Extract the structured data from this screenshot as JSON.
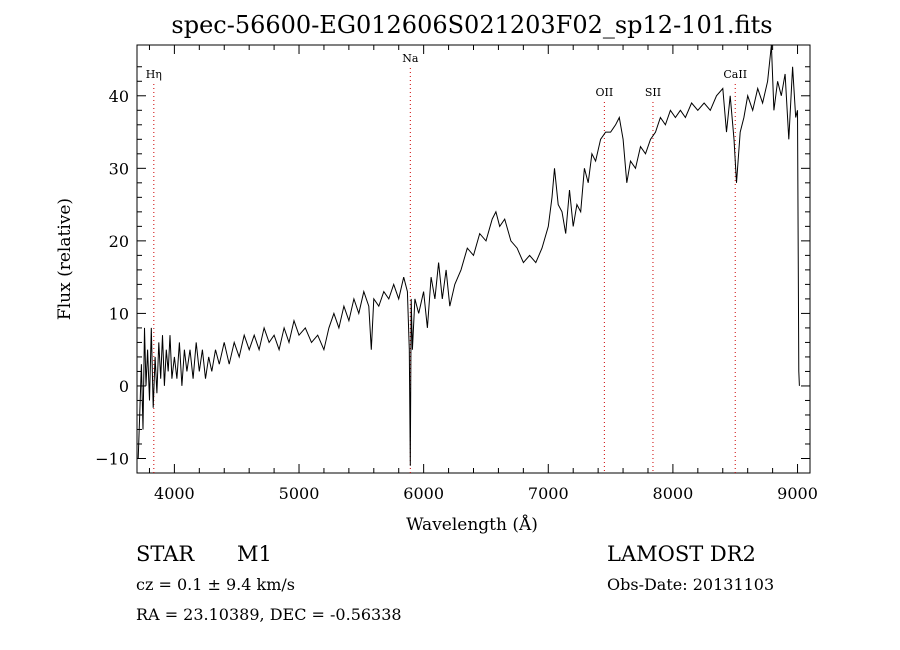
{
  "chart_data": {
    "type": "line",
    "title": "spec-56600-EG012606S021203F02_sp12-101.fits",
    "xlabel": "Wavelength (Å)",
    "ylabel": "Flux (relative)",
    "xlim": [
      3700,
      9100
    ],
    "ylim": [
      -12,
      47
    ],
    "xticks": [
      4000,
      5000,
      6000,
      7000,
      8000,
      9000
    ],
    "yticks": [
      -10,
      0,
      10,
      20,
      30,
      40
    ],
    "grid": false,
    "line_color": "#000000",
    "marker_color": "#cc0000",
    "lines": [
      {
        "label": "Hη",
        "x": 3835
      },
      {
        "label": "Na",
        "x": 5893
      },
      {
        "label": "OII",
        "x": 7450
      },
      {
        "label": "SII",
        "x": 7840
      },
      {
        "label": "CaII",
        "x": 8500
      }
    ],
    "spectrum": [
      [
        3710,
        -10
      ],
      [
        3722,
        -4
      ],
      [
        3735,
        3
      ],
      [
        3748,
        -6
      ],
      [
        3760,
        8
      ],
      [
        3772,
        0
      ],
      [
        3785,
        5
      ],
      [
        3800,
        -2
      ],
      [
        3815,
        8
      ],
      [
        3830,
        -3
      ],
      [
        3845,
        4
      ],
      [
        3860,
        -1
      ],
      [
        3875,
        6
      ],
      [
        3890,
        1
      ],
      [
        3905,
        7
      ],
      [
        3920,
        0
      ],
      [
        3935,
        5
      ],
      [
        3950,
        2
      ],
      [
        3965,
        7
      ],
      [
        3980,
        1
      ],
      [
        4000,
        4
      ],
      [
        4020,
        1
      ],
      [
        4040,
        6
      ],
      [
        4060,
        0
      ],
      [
        4080,
        5
      ],
      [
        4100,
        2
      ],
      [
        4125,
        5
      ],
      [
        4150,
        1
      ],
      [
        4175,
        6
      ],
      [
        4200,
        2
      ],
      [
        4225,
        5
      ],
      [
        4250,
        1
      ],
      [
        4275,
        4
      ],
      [
        4300,
        2
      ],
      [
        4330,
        5
      ],
      [
        4360,
        3
      ],
      [
        4400,
        6
      ],
      [
        4440,
        3
      ],
      [
        4480,
        6
      ],
      [
        4520,
        4
      ],
      [
        4560,
        7
      ],
      [
        4600,
        5
      ],
      [
        4640,
        7
      ],
      [
        4680,
        5
      ],
      [
        4720,
        8
      ],
      [
        4760,
        6
      ],
      [
        4800,
        7
      ],
      [
        4840,
        5
      ],
      [
        4880,
        8
      ],
      [
        4920,
        6
      ],
      [
        4960,
        9
      ],
      [
        5000,
        7
      ],
      [
        5050,
        8
      ],
      [
        5100,
        6
      ],
      [
        5150,
        7
      ],
      [
        5200,
        5
      ],
      [
        5240,
        8
      ],
      [
        5280,
        10
      ],
      [
        5320,
        8
      ],
      [
        5360,
        11
      ],
      [
        5400,
        9
      ],
      [
        5440,
        12
      ],
      [
        5480,
        10
      ],
      [
        5520,
        13
      ],
      [
        5560,
        11
      ],
      [
        5580,
        5
      ],
      [
        5600,
        12
      ],
      [
        5640,
        11
      ],
      [
        5680,
        13
      ],
      [
        5720,
        12
      ],
      [
        5760,
        14
      ],
      [
        5800,
        12
      ],
      [
        5840,
        15
      ],
      [
        5870,
        13
      ],
      [
        5885,
        5
      ],
      [
        5893,
        -11
      ],
      [
        5900,
        12
      ],
      [
        5910,
        5
      ],
      [
        5930,
        12
      ],
      [
        5960,
        10
      ],
      [
        6000,
        13
      ],
      [
        6030,
        8
      ],
      [
        6060,
        15
      ],
      [
        6090,
        12
      ],
      [
        6120,
        17
      ],
      [
        6150,
        12
      ],
      [
        6180,
        16
      ],
      [
        6210,
        11
      ],
      [
        6250,
        14
      ],
      [
        6300,
        16
      ],
      [
        6350,
        19
      ],
      [
        6400,
        18
      ],
      [
        6450,
        21
      ],
      [
        6500,
        20
      ],
      [
        6550,
        23
      ],
      [
        6580,
        24
      ],
      [
        6610,
        22
      ],
      [
        6650,
        23
      ],
      [
        6700,
        20
      ],
      [
        6750,
        19
      ],
      [
        6800,
        17
      ],
      [
        6850,
        18
      ],
      [
        6900,
        17
      ],
      [
        6950,
        19
      ],
      [
        7000,
        22
      ],
      [
        7030,
        26
      ],
      [
        7050,
        30
      ],
      [
        7080,
        25
      ],
      [
        7110,
        24
      ],
      [
        7140,
        21
      ],
      [
        7170,
        27
      ],
      [
        7200,
        22
      ],
      [
        7230,
        25
      ],
      [
        7260,
        24
      ],
      [
        7290,
        30
      ],
      [
        7320,
        28
      ],
      [
        7350,
        32
      ],
      [
        7380,
        31
      ],
      [
        7420,
        34
      ],
      [
        7460,
        35
      ],
      [
        7500,
        35
      ],
      [
        7540,
        36
      ],
      [
        7570,
        37
      ],
      [
        7600,
        34
      ],
      [
        7630,
        28
      ],
      [
        7660,
        31
      ],
      [
        7700,
        30
      ],
      [
        7740,
        33
      ],
      [
        7780,
        32
      ],
      [
        7820,
        34
      ],
      [
        7860,
        35
      ],
      [
        7900,
        37
      ],
      [
        7940,
        36
      ],
      [
        7980,
        38
      ],
      [
        8020,
        37
      ],
      [
        8060,
        38
      ],
      [
        8100,
        37
      ],
      [
        8150,
        39
      ],
      [
        8200,
        38
      ],
      [
        8250,
        39
      ],
      [
        8300,
        38
      ],
      [
        8350,
        40
      ],
      [
        8400,
        41
      ],
      [
        8430,
        35
      ],
      [
        8460,
        40
      ],
      [
        8490,
        34
      ],
      [
        8510,
        28
      ],
      [
        8540,
        35
      ],
      [
        8570,
        37
      ],
      [
        8600,
        40
      ],
      [
        8640,
        38
      ],
      [
        8680,
        41
      ],
      [
        8720,
        39
      ],
      [
        8760,
        42
      ],
      [
        8790,
        47
      ],
      [
        8810,
        38
      ],
      [
        8840,
        42
      ],
      [
        8870,
        40
      ],
      [
        8900,
        43
      ],
      [
        8930,
        34
      ],
      [
        8960,
        44
      ],
      [
        8985,
        37
      ],
      [
        9000,
        38
      ],
      [
        9010,
        2
      ],
      [
        9015,
        0
      ]
    ]
  },
  "info": {
    "classification": "STAR",
    "subclass": "M1",
    "survey": "LAMOST DR2",
    "redshift": "cz = 0.1 ± 9.4 km/s",
    "obs_date": "Obs-Date: 20131103",
    "coords": "RA =  23.10389, DEC =  -0.56338"
  }
}
